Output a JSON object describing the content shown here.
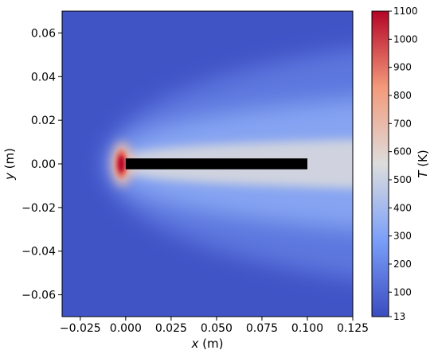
{
  "chart_data": {
    "type": "heatmap",
    "title": "",
    "xlabel_var": "x",
    "xlabel_unit": " (m)",
    "ylabel_var": "y",
    "ylabel_unit": " (m)",
    "xlim": [
      -0.035,
      0.125
    ],
    "ylim": [
      -0.07,
      0.07
    ],
    "x_ticks": [
      -0.025,
      0.0,
      0.025,
      0.05,
      0.075,
      0.1,
      0.125
    ],
    "x_tick_labels": [
      "−0.025",
      "0.000",
      "0.025",
      "0.050",
      "0.075",
      "0.100",
      "0.125"
    ],
    "y_ticks": [
      0.06,
      0.04,
      0.02,
      0.0,
      -0.02,
      -0.04,
      -0.06
    ],
    "y_tick_labels": [
      "0.06",
      "0.04",
      "0.02",
      "0.00",
      "−0.02",
      "−0.04",
      "−0.06"
    ],
    "colorbar": {
      "label_var": "T",
      "label_unit": " (K)",
      "colormap": "coolwarm",
      "min": 13,
      "max": 1100,
      "ticks": [
        13,
        100,
        200,
        300,
        400,
        500,
        600,
        700,
        800,
        900,
        1000,
        1100
      ],
      "tick_labels": [
        "13",
        "100",
        "200",
        "300",
        "400",
        "500",
        "600",
        "700",
        "800",
        "900",
        "1000",
        "1100"
      ]
    },
    "obstacle": {
      "x": [
        0.0,
        0.1
      ],
      "y": [
        -0.0025,
        0.0025
      ],
      "color": "#000000"
    },
    "hot_spot": {
      "x": -0.002,
      "y": 0.0,
      "T_max": 1100
    },
    "ambient_T": 40,
    "wake_T": 560
  }
}
